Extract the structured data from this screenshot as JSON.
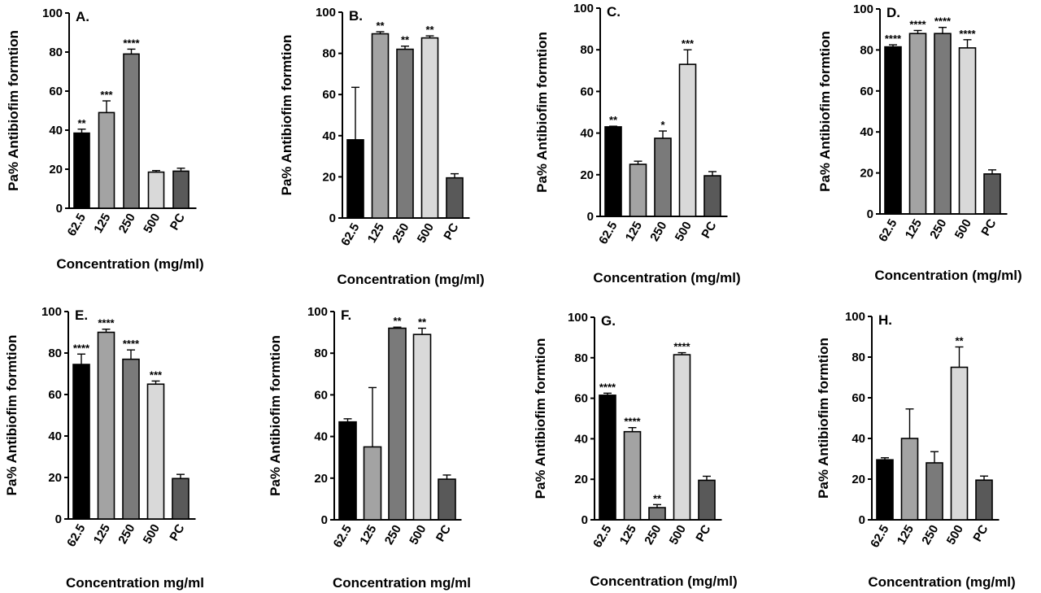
{
  "colors": {
    "bar_fills": [
      "#000000",
      "#a3a3a3",
      "#7a7a7a",
      "#d9d9d9",
      "#595959"
    ],
    "axis": "#000000",
    "background": "#ffffff"
  },
  "chart_data": [
    {
      "panel": "A.",
      "type": "bar",
      "categories": [
        "62.5",
        "125",
        "250",
        "500",
        "PC"
      ],
      "values": [
        38.5,
        49,
        79,
        18.5,
        19
      ],
      "errors": [
        2,
        6,
        2.5,
        0.8,
        1.5
      ],
      "significance": [
        "**",
        "***",
        "****",
        "",
        ""
      ],
      "ylabel": "Pa% Antibiofim formtion",
      "xlabel": "Concentration (mg/ml)",
      "ylim": [
        0,
        100
      ],
      "yticks": [
        "0",
        "20",
        "40",
        "60",
        "80",
        "100"
      ]
    },
    {
      "panel": "B.",
      "type": "bar",
      "categories": [
        "62.5",
        "125",
        "250",
        "500",
        "PC"
      ],
      "values": [
        38,
        89.5,
        82,
        87.5,
        19.5
      ],
      "errors": [
        25.5,
        1,
        1.5,
        1,
        2
      ],
      "significance": [
        "",
        "**",
        "**",
        "**",
        ""
      ],
      "ylabel": "Pa% Antibiofim formtion",
      "xlabel": "Concentration (mg/ml)",
      "ylim": [
        0,
        100
      ],
      "yticks": [
        "0",
        "20",
        "40",
        "60",
        "80",
        "100"
      ]
    },
    {
      "panel": "C.",
      "type": "bar",
      "categories": [
        "62.5",
        "125",
        "250",
        "500",
        "PC"
      ],
      "values": [
        43,
        25,
        37.5,
        73,
        19.5
      ],
      "errors": [
        0.3,
        1.5,
        3.5,
        7,
        2
      ],
      "significance": [
        "**",
        "",
        "*",
        "***",
        ""
      ],
      "ylabel": "Pa% Antibiofim formtion",
      "xlabel": "Concentration (mg/ml)",
      "ylim": [
        0,
        100
      ],
      "yticks": [
        "0",
        "20",
        "40",
        "60",
        "80",
        "100"
      ]
    },
    {
      "panel": "D.",
      "type": "bar",
      "categories": [
        "62.5",
        "125",
        "250",
        "500",
        "PC"
      ],
      "values": [
        81.5,
        88,
        88,
        81,
        19.5
      ],
      "errors": [
        1,
        1.5,
        3,
        4,
        2
      ],
      "significance": [
        "****",
        "****",
        "****",
        "****",
        ""
      ],
      "ylabel": "Pa% Antibiofim formtion",
      "xlabel": "Concentration (mg/ml)",
      "ylim": [
        0,
        100
      ],
      "yticks": [
        "0",
        "20",
        "40",
        "60",
        "80",
        "100"
      ]
    },
    {
      "panel": "E.",
      "type": "bar",
      "categories": [
        "62.5",
        "125",
        "250",
        "500",
        "PC"
      ],
      "values": [
        74.5,
        90,
        77,
        65,
        19.5
      ],
      "errors": [
        5,
        1.5,
        4.5,
        1.5,
        2
      ],
      "significance": [
        "****",
        "****",
        "****",
        "***",
        ""
      ],
      "ylabel": "Pa% Antibiofim formtion",
      "xlabel": "Concentration mg/ml",
      "ylim": [
        0,
        100
      ],
      "yticks": [
        "0",
        "20",
        "40",
        "60",
        "80",
        "100"
      ]
    },
    {
      "panel": "F.",
      "type": "bar",
      "categories": [
        "62.5",
        "125",
        "250",
        "500",
        "PC"
      ],
      "values": [
        47,
        35,
        92,
        89,
        19.5
      ],
      "errors": [
        1.5,
        28.5,
        0.5,
        3,
        2
      ],
      "significance": [
        "",
        "",
        "**",
        "**",
        ""
      ],
      "ylabel": "Pa% Antibiofim formtion",
      "xlabel": "Concentration mg/ml",
      "ylim": [
        0,
        100
      ],
      "yticks": [
        "0",
        "20",
        "40",
        "60",
        "80",
        "100"
      ]
    },
    {
      "panel": "G.",
      "type": "bar",
      "categories": [
        "62.5",
        "125",
        "250",
        "500",
        "PC"
      ],
      "values": [
        61.5,
        43.5,
        6,
        81.5,
        19.5
      ],
      "errors": [
        1,
        2,
        1.5,
        1,
        2
      ],
      "significance": [
        "****",
        "****",
        "**",
        "****",
        ""
      ],
      "ylabel": "Pa% Antibiofim formtion",
      "xlabel": "Concentration (mg/ml)",
      "ylim": [
        0,
        100
      ],
      "yticks": [
        "0",
        "20",
        "40",
        "60",
        "80",
        "100"
      ]
    },
    {
      "panel": "H.",
      "type": "bar",
      "categories": [
        "62.5",
        "125",
        "250",
        "500",
        "PC"
      ],
      "values": [
        29.5,
        40,
        28,
        75,
        19.5
      ],
      "errors": [
        1,
        14.5,
        5.5,
        10,
        2
      ],
      "significance": [
        "",
        "",
        "",
        "**",
        ""
      ],
      "ylabel": "Pa% Antibiofim formtion",
      "xlabel": "Concentration (mg/ml)",
      "ylim": [
        0,
        100
      ],
      "yticks": [
        "0",
        "20",
        "40",
        "60",
        "80",
        "100"
      ]
    }
  ]
}
